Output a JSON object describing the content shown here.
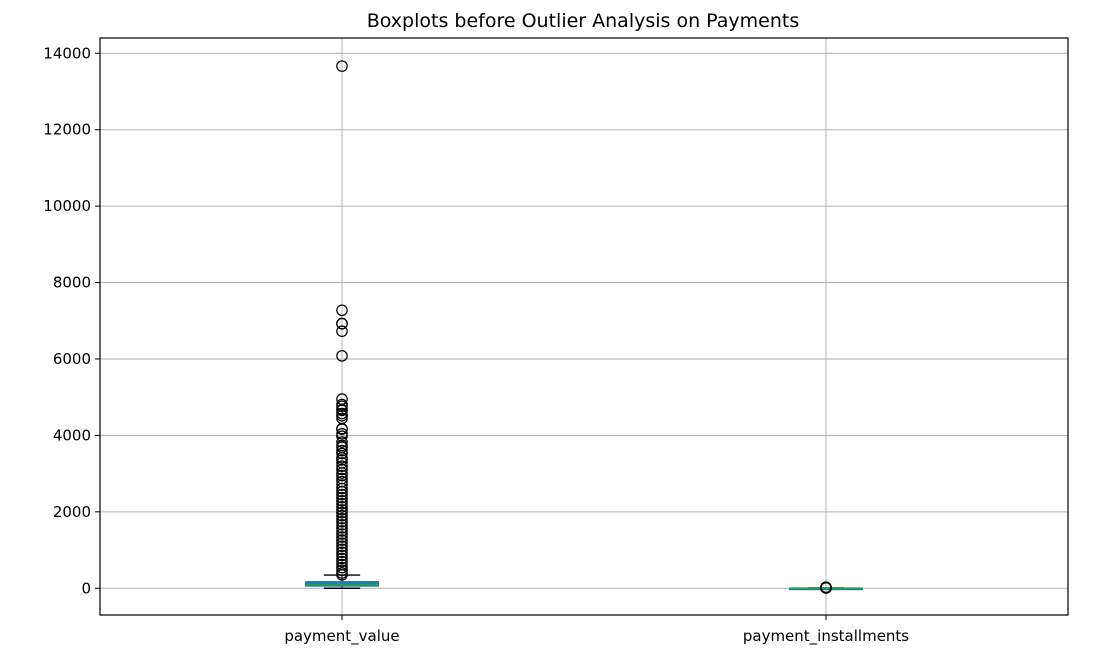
{
  "chart_data": {
    "type": "boxplot",
    "title": "Boxplots before Outlier Analysis on Payments",
    "xlabel": "",
    "ylabel": "",
    "ylim": [
      -700,
      14400
    ],
    "yticks": [
      0,
      2000,
      4000,
      6000,
      8000,
      10000,
      12000,
      14000
    ],
    "grid": true,
    "categories": [
      "payment_value",
      "payment_installments"
    ],
    "box_color": "#1f77b4",
    "median_color": "#2ca02c",
    "series": [
      {
        "category": "payment_value",
        "whisker_low": 0,
        "q1": 57,
        "median": 100,
        "q3": 172,
        "whisker_high": 344,
        "outliers": [
          13664,
          7274,
          6929,
          6922,
          6727,
          6081,
          4950,
          4809,
          4764,
          4681,
          4655,
          4573,
          4513,
          4446,
          4176,
          4163,
          4042,
          3980,
          3826,
          3736,
          3690,
          3602,
          3526,
          3414,
          3358,
          3280,
          3195,
          3109,
          3016,
          2950,
          2870,
          2790,
          2700,
          2610,
          2530,
          2450,
          2370,
          2290,
          2210,
          2130,
          2050,
          1980,
          1900,
          1820,
          1740,
          1660,
          1580,
          1500,
          1420,
          1340,
          1260,
          1180,
          1100,
          1020,
          940,
          860,
          780,
          700,
          620,
          540,
          470,
          400,
          350
        ]
      },
      {
        "category": "payment_installments",
        "whisker_low": 0,
        "q1": 1,
        "median": 1,
        "q3": 4,
        "whisker_high": 8,
        "outliers": [
          9,
          10,
          11,
          12,
          13,
          14,
          15,
          16,
          17,
          18,
          20,
          21,
          22,
          23,
          24
        ]
      }
    ]
  }
}
